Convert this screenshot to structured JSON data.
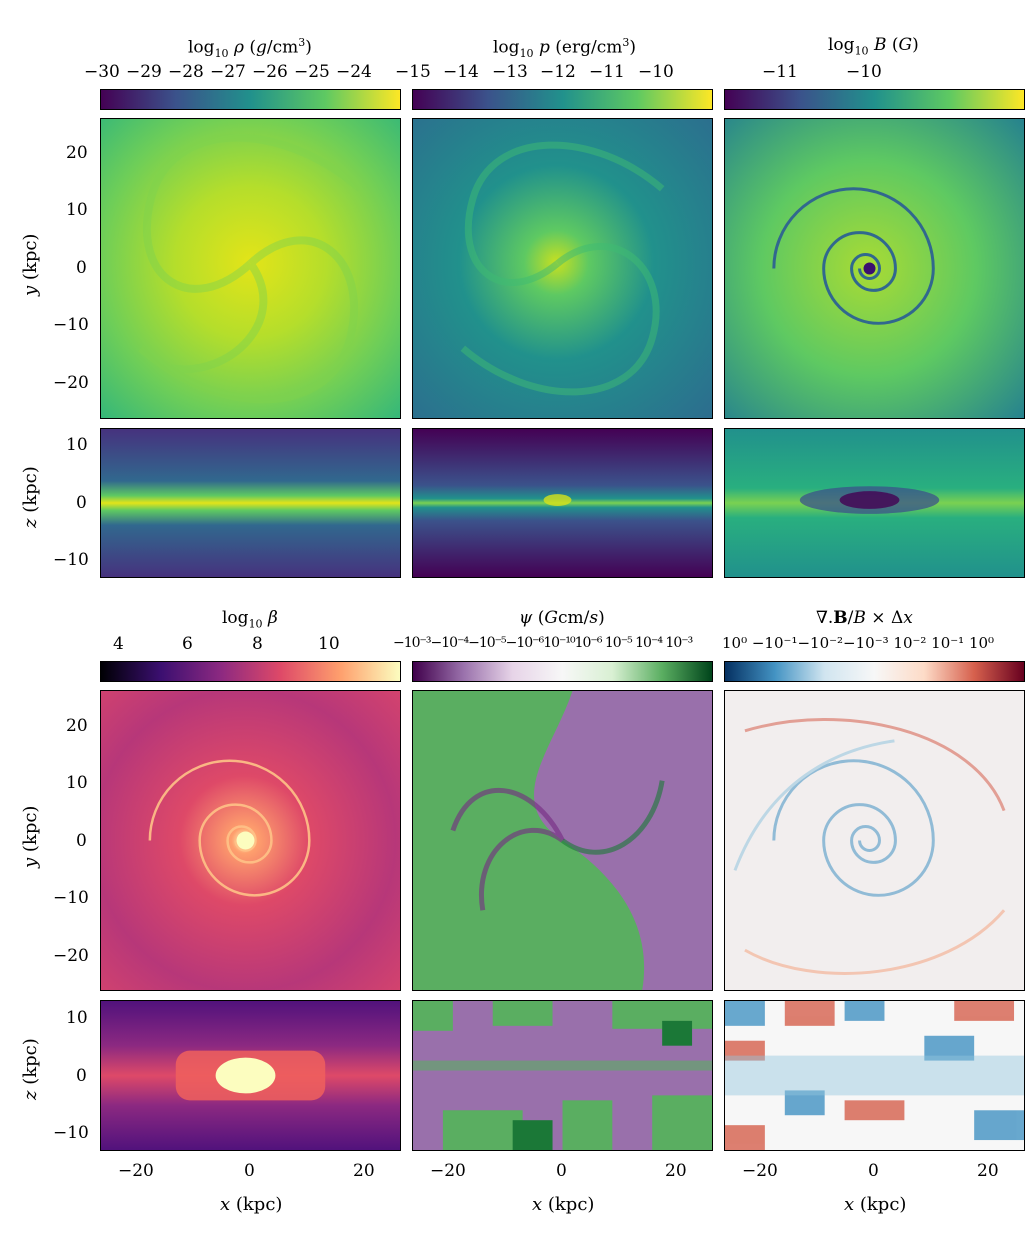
{
  "figure": {
    "rows": [
      {
        "colorbars": [
          {
            "label": "log10 ρ (g/cm³)",
            "ticks": [
              "−30",
              "−29",
              "−28",
              "−27",
              "−26",
              "−25",
              "−24"
            ],
            "colormap": "viridis"
          },
          {
            "label": "log10 p (erg/cm³)",
            "ticks": [
              "−15",
              "−14",
              "−13",
              "−12",
              "−11",
              "−10"
            ],
            "colormap": "viridis"
          },
          {
            "label": "log10 B (G)",
            "ticks": [
              "−11",
              "−10"
            ],
            "colormap": "viridis"
          }
        ],
        "xy_ylabel": "y (kpc)",
        "xz_ylabel": "z (kpc)"
      },
      {
        "colorbars": [
          {
            "label": "log10 β",
            "ticks": [
              "4",
              "6",
              "8",
              "10"
            ],
            "colormap": "magma"
          },
          {
            "label": "ψ (Gcm/s)",
            "ticks_text": "−10⁻³−10⁻⁴−10⁻⁵−10⁻⁶10⁻¹⁰10⁻⁶ 10⁻⁵ 10⁻⁴ 10⁻³",
            "colormap": "PRGn"
          },
          {
            "label": "∇.B/B × Δx",
            "ticks_text": "10⁰ −10⁻¹−10⁻²−10⁻³ 10⁻² 10⁻¹ 10⁰",
            "colormap": "RdBu_r"
          }
        ],
        "xy_ylabel": "y (kpc)",
        "xz_ylabel": "z (kpc)"
      }
    ],
    "y_ticks_xy": [
      "20",
      "10",
      "0",
      "−10",
      "−20"
    ],
    "y_ticks_xz": [
      "10",
      "0",
      "−10"
    ],
    "x_ticks": [
      "−20",
      "0",
      "20"
    ],
    "xlabel": "x (kpc)",
    "colors": {
      "viridis": [
        "#440154",
        "#3b528b",
        "#21918c",
        "#5ec962",
        "#fde725"
      ],
      "magma": [
        "#000004",
        "#3b0f70",
        "#8c2981",
        "#de4968",
        "#fe9f6d",
        "#fcfdbf"
      ],
      "prgn": [
        "#40004b",
        "#9970ab",
        "#e7d4e8",
        "#f7f7f7",
        "#d9f0d3",
        "#5aae61",
        "#00441b"
      ],
      "rdbu": [
        "#053061",
        "#4393c3",
        "#d1e5f0",
        "#f7f7f7",
        "#fddbc7",
        "#d6604d",
        "#67001f"
      ]
    }
  }
}
